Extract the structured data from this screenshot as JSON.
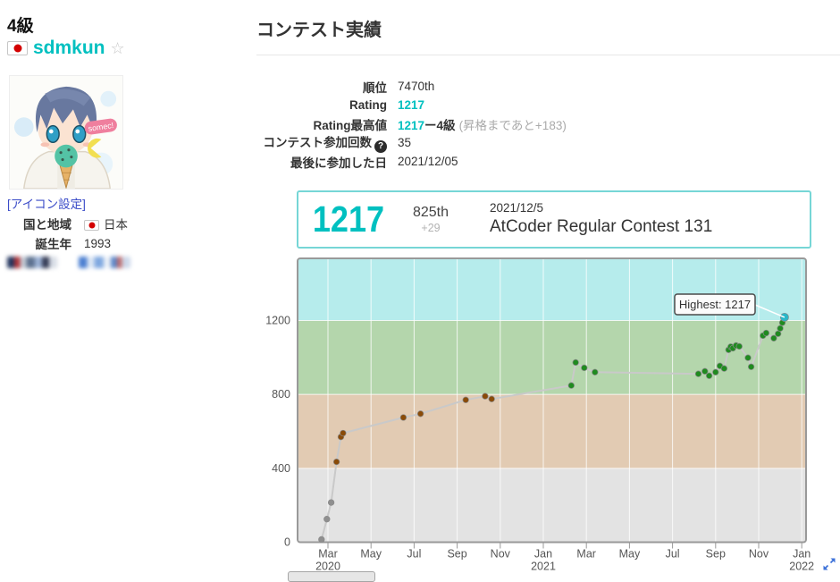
{
  "colors": {
    "accent_teal": "#00C0C0",
    "link_blue": "#3b4cc8",
    "latest_box_border": "#76d6d6"
  },
  "sidebar": {
    "rank": "4級",
    "username": "sdmkun",
    "star_glyph": "☆",
    "flag_icon": "japan-flag",
    "icon_setting_link": "[アイコン設定]",
    "avatar_bubble_text": "somec!",
    "profile": {
      "country_label": "国と地域",
      "country_value": "日本",
      "birth_label": "誕生年",
      "birth_value": "1993"
    }
  },
  "main": {
    "title": "コンテスト実績",
    "stats": {
      "rank_label": "順位",
      "rank_value": "7470th",
      "rating_label": "Rating",
      "rating_value": "1217",
      "highest_label": "Rating最高値",
      "highest_value": "1217",
      "highest_rank": "ー4級",
      "highest_note": "(昇格まであと+183)",
      "count_label": "コンテスト参加回数",
      "count_help_glyph": "?",
      "count_value": "35",
      "last_label": "最後に参加した日",
      "last_value": "2021/12/05"
    },
    "latest": {
      "rating": "1217",
      "place": "825th",
      "delta": "+29",
      "date": "2021/12/5",
      "contest": "AtCoder Regular Contest 131"
    }
  },
  "chart_data": {
    "type": "line",
    "title": "Rating history",
    "x_axis": {
      "start": "2020-03",
      "tick_interval_months": 2,
      "ticks": [
        "Mar\n2020",
        "May",
        "Jul",
        "Sep",
        "Nov",
        "Jan\n2021",
        "Mar",
        "May",
        "Jul",
        "Sep",
        "Nov",
        "Jan\n2022"
      ]
    },
    "y_axis": {
      "ticks": [
        0,
        400,
        800,
        1200
      ],
      "min": 0,
      "max": 1536
    },
    "bands": [
      {
        "from": 0,
        "to": 400,
        "color": "#e3e3e3",
        "tier": "gray"
      },
      {
        "from": 400,
        "to": 800,
        "color": "#e2cbb3",
        "tier": "brown"
      },
      {
        "from": 800,
        "to": 1200,
        "color": "#b4d6ac",
        "tier": "green"
      },
      {
        "from": 1200,
        "to": 1536,
        "color": "#b6ecec",
        "tier": "cyan"
      }
    ],
    "line_color": "#c9c9c9",
    "grid_color": "#ffffff",
    "highest_annotation": "Highest: 1217",
    "points": [
      {
        "m": -0.3,
        "rating": 15,
        "color": "#8f8f8f"
      },
      {
        "m": -0.05,
        "rating": 125,
        "color": "#8f8f8f"
      },
      {
        "m": 0.15,
        "rating": 215,
        "color": "#8f8f8f"
      },
      {
        "m": 0.4,
        "rating": 435,
        "color": "#8a4b08"
      },
      {
        "m": 0.6,
        "rating": 570,
        "color": "#8a4b08"
      },
      {
        "m": 0.7,
        "rating": 590,
        "color": "#8a4b08"
      },
      {
        "m": 3.5,
        "rating": 675,
        "color": "#8a4b08"
      },
      {
        "m": 4.3,
        "rating": 695,
        "color": "#8a4b08"
      },
      {
        "m": 6.4,
        "rating": 770,
        "color": "#8a4b08"
      },
      {
        "m": 7.3,
        "rating": 790,
        "color": "#8a4b08"
      },
      {
        "m": 7.6,
        "rating": 775,
        "color": "#8a4b08"
      },
      {
        "m": 11.3,
        "rating": 848,
        "color": "#1f8b1f"
      },
      {
        "m": 11.5,
        "rating": 973,
        "color": "#1f8b1f"
      },
      {
        "m": 11.9,
        "rating": 944,
        "color": "#1f8b1f"
      },
      {
        "m": 12.4,
        "rating": 920,
        "color": "#1f8b1f"
      },
      {
        "m": 17.2,
        "rating": 911,
        "color": "#1f8b1f"
      },
      {
        "m": 17.5,
        "rating": 925,
        "color": "#1f8b1f"
      },
      {
        "m": 17.7,
        "rating": 901,
        "color": "#1f8b1f"
      },
      {
        "m": 18.0,
        "rating": 920,
        "color": "#1f8b1f"
      },
      {
        "m": 18.2,
        "rating": 954,
        "color": "#1f8b1f"
      },
      {
        "m": 18.4,
        "rating": 940,
        "color": "#1f8b1f"
      },
      {
        "m": 18.6,
        "rating": 1041,
        "color": "#1f8b1f"
      },
      {
        "m": 18.7,
        "rating": 1058,
        "color": "#1f8b1f"
      },
      {
        "m": 18.8,
        "rating": 1050,
        "color": "#1f8b1f"
      },
      {
        "m": 18.95,
        "rating": 1065,
        "color": "#1f8b1f"
      },
      {
        "m": 19.1,
        "rating": 1060,
        "color": "#1f8b1f"
      },
      {
        "m": 19.5,
        "rating": 998,
        "color": "#1f8b1f"
      },
      {
        "m": 19.65,
        "rating": 949,
        "color": "#1f8b1f"
      },
      {
        "m": 20.2,
        "rating": 1118,
        "color": "#1f8b1f"
      },
      {
        "m": 20.35,
        "rating": 1132,
        "color": "#1f8b1f"
      },
      {
        "m": 20.7,
        "rating": 1104,
        "color": "#1f8b1f"
      },
      {
        "m": 20.9,
        "rating": 1128,
        "color": "#1f8b1f"
      },
      {
        "m": 21.0,
        "rating": 1157,
        "color": "#1f8b1f"
      },
      {
        "m": 21.1,
        "rating": 1188,
        "color": "#1f8b1f"
      },
      {
        "m": 21.2,
        "rating": 1217,
        "color": "#29b6c8",
        "highlight": true
      }
    ]
  }
}
